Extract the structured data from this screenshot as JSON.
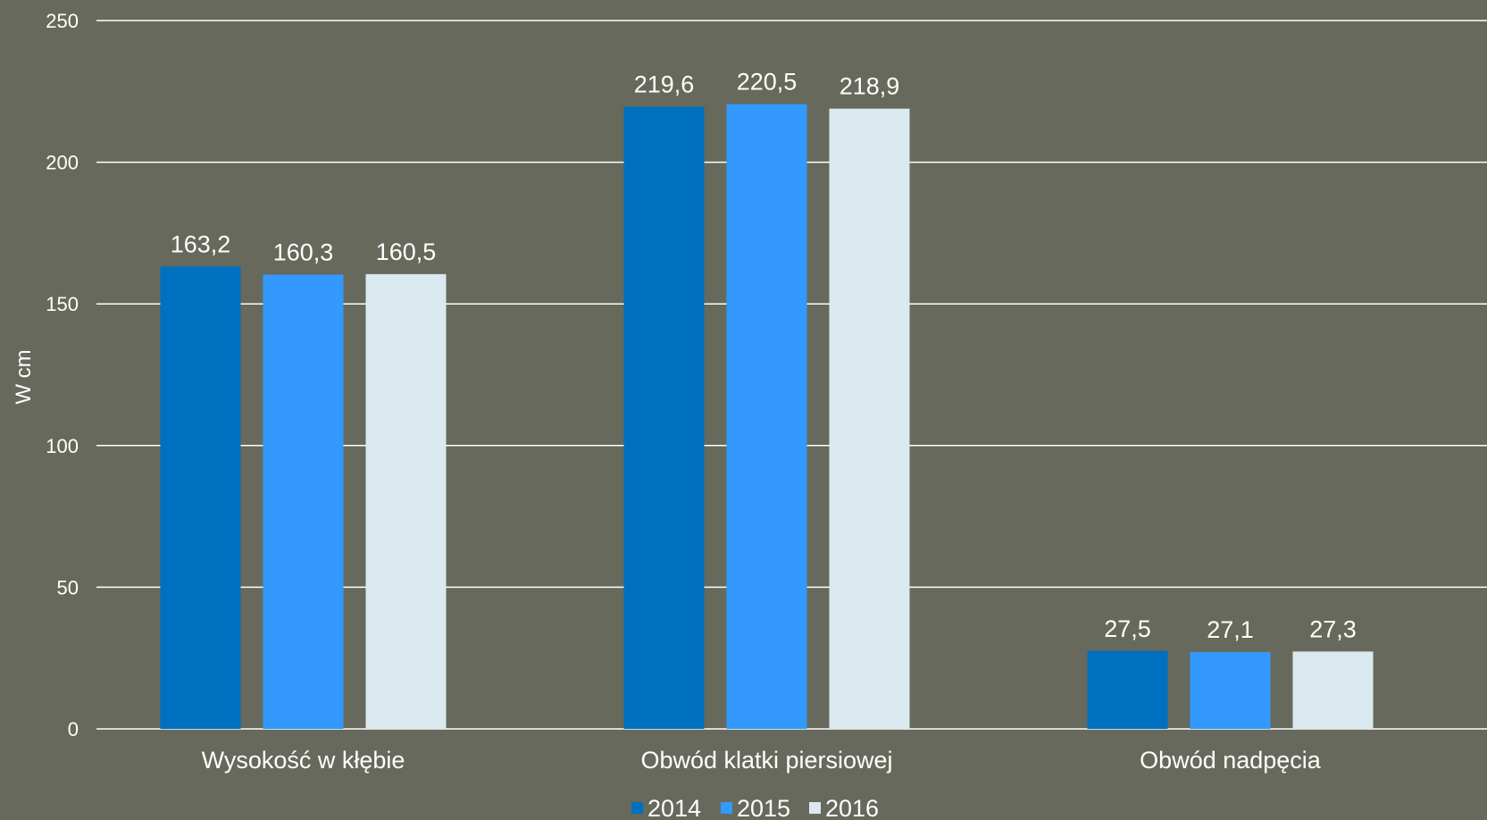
{
  "chart_data": {
    "type": "bar",
    "categories": [
      "Wysokość w kłębie",
      "Obwód klatki piersiowej",
      "Obwód nadpęcia"
    ],
    "series": [
      {
        "name": "2014",
        "values": [
          163.2,
          219.6,
          27.5
        ],
        "labels": [
          "163,2",
          "219,6",
          "27,5"
        ],
        "color": "#0070c0"
      },
      {
        "name": "2015",
        "values": [
          160.3,
          220.5,
          27.1
        ],
        "labels": [
          "160,3",
          "220,5",
          "27,1"
        ],
        "color": "#3399ff"
      },
      {
        "name": "2016",
        "values": [
          160.5,
          218.9,
          27.3
        ],
        "labels": [
          "160,5",
          "218,9",
          "27,3"
        ],
        "color": "#daeaf0"
      }
    ],
    "ylabel": "W cm",
    "xlabel": "",
    "ylim": [
      0,
      250
    ],
    "yticks": [
      0,
      50,
      100,
      150,
      200,
      250
    ],
    "grid": true,
    "legend_position": "bottom",
    "background": "#67695c"
  }
}
